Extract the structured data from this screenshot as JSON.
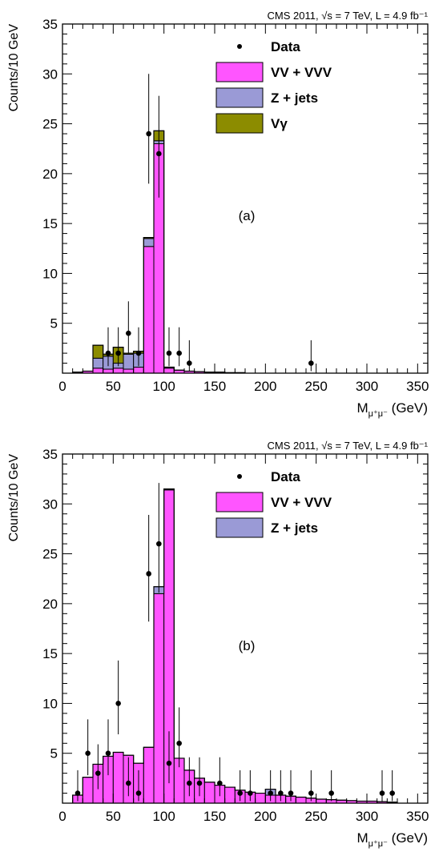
{
  "colors": {
    "vv_vvv": "#ff55ff",
    "z_jets": "#9a9ad6",
    "v_gamma": "#8c8c00",
    "data": "#000000",
    "frame": "#000000"
  },
  "chart_data": [
    {
      "type": "bar",
      "panel_label": "(a)",
      "header": "CMS 2011, √s = 7 TeV, L = 4.9 fb⁻¹",
      "xlabel": "M",
      "xlabel_sub": "μ⁺μ⁻",
      "xlabel_unit": "(GeV)",
      "ylabel": "Counts/10 GeV",
      "xlim": [
        0,
        360
      ],
      "ylim": [
        0,
        35
      ],
      "xticks": [
        0,
        50,
        100,
        150,
        200,
        250,
        300,
        350
      ],
      "yticks": [
        5,
        10,
        15,
        20,
        25,
        30,
        35
      ],
      "grid": false,
      "legend_position": "top-right",
      "legend": [
        {
          "label": "Data",
          "kind": "marker",
          "color_key": "data"
        },
        {
          "label": "VV + VVV",
          "kind": "box",
          "color_key": "vv_vvv"
        },
        {
          "label": "Z + jets",
          "kind": "box",
          "color_key": "z_jets"
        },
        {
          "label": "Vγ",
          "kind": "box",
          "color_key": "v_gamma"
        }
      ],
      "bin_edges": [
        10,
        20,
        30,
        40,
        50,
        60,
        70,
        80,
        90,
        100,
        110,
        120,
        130,
        140,
        150,
        160,
        170,
        180
      ],
      "stack": [
        {
          "name": "VV + VVV",
          "color_key": "vv_vvv",
          "values": [
            0.1,
            0.2,
            0.5,
            0.4,
            0.5,
            0.4,
            0.6,
            12.7,
            23.0,
            0.5,
            0.3,
            0.2,
            0.15,
            0.1,
            0.1,
            0.05,
            0.05
          ]
        },
        {
          "name": "Z + jets",
          "color_key": "z_jets",
          "values": [
            0.0,
            0.0,
            1.0,
            1.3,
            0.5,
            1.5,
            1.4,
            0.8,
            0.3,
            0.1,
            0.0,
            0.0,
            0.0,
            0.0,
            0.0,
            0.0,
            0.0
          ]
        },
        {
          "name": "Vγ",
          "color_key": "v_gamma",
          "values": [
            0.0,
            0.0,
            1.3,
            0.2,
            1.6,
            0.1,
            0.2,
            0.1,
            1.0,
            0.0,
            0.0,
            0.0,
            0.0,
            0.0,
            0.0,
            0.0,
            0.0
          ]
        }
      ],
      "data_points": [
        {
          "x": 45,
          "y": 2,
          "lo": 0.7,
          "hi": 4.6
        },
        {
          "x": 55,
          "y": 2,
          "lo": 0.7,
          "hi": 4.6
        },
        {
          "x": 65,
          "y": 4,
          "lo": 2.0,
          "hi": 7.2
        },
        {
          "x": 75,
          "y": 2,
          "lo": 0.7,
          "hi": 4.6
        },
        {
          "x": 85,
          "y": 24,
          "lo": 19.0,
          "hi": 30.0
        },
        {
          "x": 95,
          "y": 22,
          "lo": 17.6,
          "hi": 27.8
        },
        {
          "x": 105,
          "y": 2,
          "lo": 0.7,
          "hi": 4.6
        },
        {
          "x": 115,
          "y": 2,
          "lo": 0.7,
          "hi": 4.6
        },
        {
          "x": 125,
          "y": 1,
          "lo": 0.2,
          "hi": 3.3
        },
        {
          "x": 245,
          "y": 1,
          "lo": 0.2,
          "hi": 3.3
        }
      ]
    },
    {
      "type": "bar",
      "panel_label": "(b)",
      "header": "CMS 2011, √s = 7 TeV, L = 4.9 fb⁻¹",
      "xlabel": "M",
      "xlabel_sub": "μ⁺μ⁻",
      "xlabel_unit": "(GeV)",
      "ylabel": "Counts/10 GeV",
      "xlim": [
        0,
        360
      ],
      "ylim": [
        0,
        35
      ],
      "xticks": [
        0,
        50,
        100,
        150,
        200,
        250,
        300,
        350
      ],
      "yticks": [
        5,
        10,
        15,
        20,
        25,
        30,
        35
      ],
      "grid": false,
      "legend_position": "top-right",
      "legend": [
        {
          "label": "Data",
          "kind": "marker",
          "color_key": "data"
        },
        {
          "label": "VV + VVV",
          "kind": "box",
          "color_key": "vv_vvv"
        },
        {
          "label": "Z + jets",
          "kind": "box",
          "color_key": "z_jets"
        }
      ],
      "bin_edges": [
        10,
        20,
        30,
        40,
        50,
        60,
        70,
        80,
        90,
        100,
        110,
        120,
        130,
        140,
        150,
        160,
        170,
        180,
        190,
        200,
        210,
        220,
        230,
        240,
        250,
        260,
        270,
        280,
        290,
        300,
        310,
        320,
        330
      ],
      "stack": [
        {
          "name": "VV + VVV",
          "color_key": "vv_vvv",
          "values": [
            0.8,
            2.6,
            3.9,
            4.7,
            5.1,
            4.8,
            4.0,
            5.6,
            21.0,
            31.4,
            4.5,
            3.3,
            2.5,
            2.1,
            1.8,
            1.6,
            1.3,
            1.1,
            1.0,
            0.8,
            0.8,
            0.7,
            0.6,
            0.5,
            0.4,
            0.35,
            0.3,
            0.25,
            0.2,
            0.2,
            0.15,
            0.1
          ]
        },
        {
          "name": "Z + jets",
          "color_key": "z_jets",
          "values": [
            0.0,
            0.0,
            0.0,
            0.0,
            0.0,
            0.0,
            0.0,
            0.0,
            0.7,
            0.1,
            0.0,
            0.0,
            0.0,
            0.0,
            0.0,
            0.0,
            0.0,
            0.0,
            0.0,
            0.6,
            0.0,
            0.0,
            0.0,
            0.0,
            0.0,
            0.0,
            0.0,
            0.0,
            0.0,
            0.0,
            0.0,
            0.0
          ]
        }
      ],
      "data_points": [
        {
          "x": 15,
          "y": 1,
          "lo": 0.2,
          "hi": 3.3
        },
        {
          "x": 25,
          "y": 5,
          "lo": 2.8,
          "hi": 8.4
        },
        {
          "x": 35,
          "y": 3,
          "lo": 1.4,
          "hi": 5.9
        },
        {
          "x": 45,
          "y": 5,
          "lo": 2.8,
          "hi": 8.4
        },
        {
          "x": 55,
          "y": 10,
          "lo": 6.9,
          "hi": 14.3
        },
        {
          "x": 65,
          "y": 2,
          "lo": 0.7,
          "hi": 4.6
        },
        {
          "x": 75,
          "y": 1,
          "lo": 0.2,
          "hi": 3.3
        },
        {
          "x": 85,
          "y": 23,
          "lo": 18.2,
          "hi": 28.9
        },
        {
          "x": 95,
          "y": 26,
          "lo": 21.1,
          "hi": 32.1
        },
        {
          "x": 105,
          "y": 4,
          "lo": 2.0,
          "hi": 7.2
        },
        {
          "x": 115,
          "y": 6,
          "lo": 3.6,
          "hi": 9.6
        },
        {
          "x": 125,
          "y": 2,
          "lo": 0.7,
          "hi": 4.6
        },
        {
          "x": 135,
          "y": 2,
          "lo": 0.7,
          "hi": 4.6
        },
        {
          "x": 155,
          "y": 2,
          "lo": 0.7,
          "hi": 4.6
        },
        {
          "x": 175,
          "y": 1,
          "lo": 0.2,
          "hi": 3.3
        },
        {
          "x": 185,
          "y": 1,
          "lo": 0.2,
          "hi": 3.3
        },
        {
          "x": 205,
          "y": 1,
          "lo": 0.2,
          "hi": 3.3
        },
        {
          "x": 215,
          "y": 1,
          "lo": 0.2,
          "hi": 3.3
        },
        {
          "x": 225,
          "y": 1,
          "lo": 0.2,
          "hi": 3.3
        },
        {
          "x": 245,
          "y": 1,
          "lo": 0.2,
          "hi": 3.3
        },
        {
          "x": 265,
          "y": 1,
          "lo": 0.2,
          "hi": 3.3
        },
        {
          "x": 315,
          "y": 1,
          "lo": 0.2,
          "hi": 3.3
        },
        {
          "x": 325,
          "y": 1,
          "lo": 0.2,
          "hi": 3.3
        }
      ]
    }
  ]
}
